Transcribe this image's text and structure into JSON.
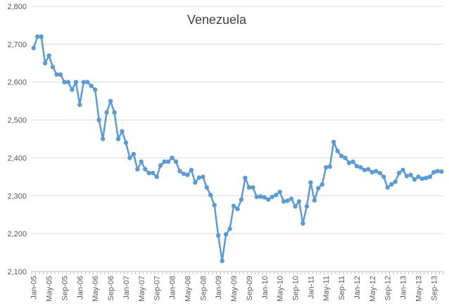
{
  "chart_data": {
    "type": "line",
    "title": "Venezuela",
    "xlabel": "",
    "ylabel": "",
    "ylim": [
      2100,
      2800
    ],
    "yticks": [
      2100,
      2200,
      2300,
      2400,
      2500,
      2600,
      2700,
      2800
    ],
    "ytick_labels": [
      "2,100",
      "2,200",
      "2,300",
      "2,400",
      "2,500",
      "2,600",
      "2,700",
      "2,800"
    ],
    "grid": "horizontal",
    "legend": "none",
    "colors": {
      "line": "#5B9BD5",
      "grid": "#D9D9D9",
      "axis": "#BFBFBF"
    },
    "x_start": "Jan-05",
    "x_tick_every": 4,
    "x_tick_labels": [
      "Jan-05",
      "May-05",
      "Sep-05",
      "Jan-06",
      "May-06",
      "Sep-06",
      "Jan-07",
      "May-07",
      "Sep-07",
      "Jan-08",
      "May-08",
      "Sep-08",
      "Jan-09",
      "May-09",
      "Sep-09",
      "Jan-10",
      "May-10",
      "Sep-10",
      "Jan-11",
      "May-11",
      "Sep-11",
      "Jan-12",
      "May-12",
      "Sep-12",
      "Jan-13",
      "May-13",
      "Sep-13"
    ],
    "series": [
      {
        "values": [
          2690,
          2720,
          2720,
          2650,
          2670,
          2640,
          2620,
          2620,
          2600,
          2600,
          2580,
          2600,
          2540,
          2600,
          2600,
          2590,
          2580,
          2500,
          2450,
          2520,
          2550,
          2520,
          2450,
          2470,
          2440,
          2400,
          2410,
          2370,
          2390,
          2370,
          2360,
          2360,
          2350,
          2380,
          2390,
          2390,
          2400,
          2390,
          2365,
          2358,
          2355,
          2368,
          2335,
          2348,
          2350,
          2322,
          2302,
          2275,
          2195,
          2128,
          2198,
          2213,
          2273,
          2265,
          2290,
          2347,
          2322,
          2322,
          2297,
          2298,
          2296,
          2290,
          2297,
          2302,
          2310,
          2285,
          2287,
          2292,
          2272,
          2285,
          2227,
          2272,
          2335,
          2288,
          2320,
          2330,
          2375,
          2377,
          2442,
          2418,
          2405,
          2400,
          2387,
          2390,
          2378,
          2375,
          2368,
          2370,
          2362,
          2365,
          2360,
          2350,
          2322,
          2330,
          2337,
          2360,
          2368,
          2352,
          2355,
          2343,
          2350,
          2345,
          2347,
          2350,
          2362,
          2365,
          2364
        ]
      }
    ]
  }
}
